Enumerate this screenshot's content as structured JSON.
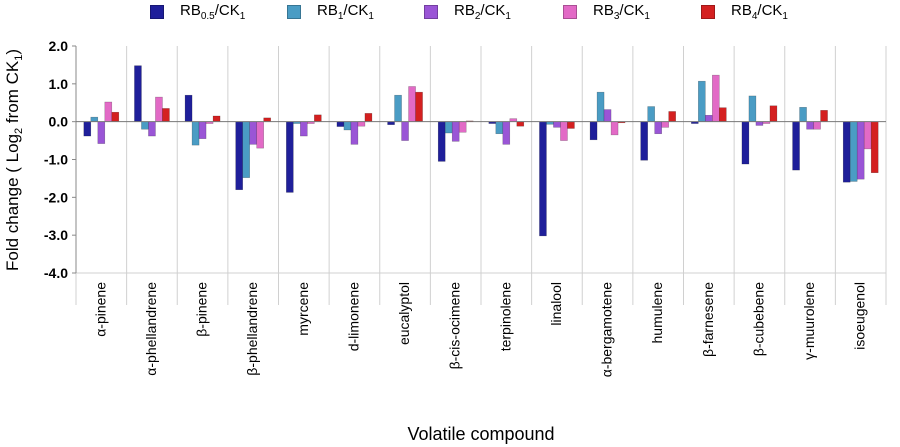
{
  "chart_data": {
    "type": "bar",
    "categories": [
      "α-pinene",
      "α-phellandrene",
      "β-pinene",
      "β-phellandrene",
      "myrcene",
      "d-limonene",
      "eucalyptol",
      "β-cis-ocimene",
      "terpinolene",
      "linalool",
      "α-bergamotene",
      "humulene",
      "β-farnesene",
      "β-cubebene",
      "γ-muurolene",
      "isoeugenol"
    ],
    "series": [
      {
        "name": "RB0.5/CK1",
        "name_main": "RB",
        "name_sub1": "0.5",
        "name_mid": "/CK",
        "name_sub2": "1",
        "color": "#1f1f9a",
        "values": [
          -0.38,
          1.48,
          0.7,
          -1.8,
          -1.87,
          -0.13,
          -0.08,
          -1.05,
          -0.05,
          -3.02,
          -0.48,
          -1.02,
          -0.05,
          -1.12,
          -1.28,
          -1.6
        ]
      },
      {
        "name": "RB1/CK1",
        "name_main": "RB",
        "name_sub1": "1",
        "name_mid": "/CK",
        "name_sub2": "1",
        "color": "#4a9cc4",
        "values": [
          0.12,
          -0.2,
          -0.62,
          -1.48,
          -0.05,
          -0.22,
          0.7,
          -0.3,
          -0.32,
          -0.07,
          0.78,
          0.4,
          1.07,
          0.68,
          0.38,
          -1.58
        ]
      },
      {
        "name": "RB2/CK1",
        "name_main": "RB",
        "name_sub1": "2",
        "name_mid": "/CK",
        "name_sub2": "1",
        "color": "#9a55d6",
        "values": [
          -0.58,
          -0.38,
          -0.45,
          -0.6,
          -0.38,
          -0.6,
          -0.5,
          -0.52,
          -0.6,
          -0.15,
          0.32,
          -0.32,
          0.17,
          -0.1,
          -0.2,
          -1.52
        ]
      },
      {
        "name": "RB3/CK1",
        "name_main": "RB",
        "name_sub1": "3",
        "name_mid": "/CK",
        "name_sub2": "1",
        "color": "#e26ac6",
        "values": [
          0.52,
          0.65,
          -0.05,
          -0.7,
          -0.05,
          -0.12,
          0.93,
          -0.28,
          0.08,
          -0.5,
          -0.35,
          -0.15,
          1.23,
          -0.05,
          -0.2,
          -0.72
        ]
      },
      {
        "name": "RB4/CK1",
        "name_main": "RB",
        "name_sub1": "4",
        "name_mid": "/CK",
        "name_sub2": "1",
        "color": "#d42020",
        "values": [
          0.25,
          0.35,
          0.15,
          0.1,
          0.18,
          0.22,
          0.78,
          0.02,
          -0.12,
          -0.18,
          -0.03,
          0.27,
          0.37,
          0.42,
          0.3,
          -1.35
        ]
      }
    ],
    "title": "",
    "xlabel": "Volatile compound",
    "ylabel": "Fold change ( Log2 from CK1)",
    "ylabel_parts": {
      "pre": "Fold change ( Log",
      "sub": "2",
      "mid": " from CK",
      "sub2": "1",
      "post": ")"
    },
    "ylim": [
      -4.0,
      2.0
    ],
    "yticks": [
      2.0,
      1.0,
      0.0,
      -1.0,
      -2.0,
      -3.0,
      -4.0
    ],
    "ytick_labels": [
      "2.0",
      "1.0",
      "0.0",
      "-1.0",
      "-2.0",
      "-3.0",
      "-4.0"
    ],
    "grid": "vertical category separators",
    "legend_position": "top"
  }
}
